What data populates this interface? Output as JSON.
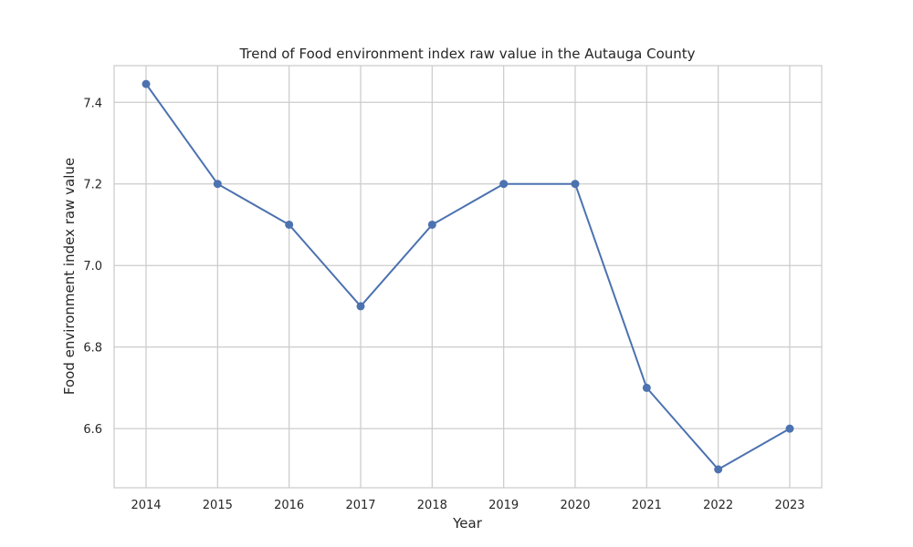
{
  "chart_data": {
    "type": "line",
    "title": "Trend of Food environment index raw value in the Autauga County",
    "xlabel": "Year",
    "ylabel": "Food environment index raw value",
    "x": [
      "2014",
      "2015",
      "2016",
      "2017",
      "2018",
      "2019",
      "2020",
      "2021",
      "2022",
      "2023"
    ],
    "series": [
      {
        "values": [
          7.445,
          7.2,
          7.1,
          6.9,
          7.1,
          7.2,
          7.2,
          6.7,
          6.5,
          6.6
        ]
      }
    ],
    "ylim": [
      6.455,
      7.49
    ],
    "yticks": [
      "6.6",
      "6.8",
      "7.0",
      "7.2",
      "7.4"
    ],
    "grid": true,
    "line_color": "#4c72b0",
    "grid_color": "#cccccc"
  }
}
